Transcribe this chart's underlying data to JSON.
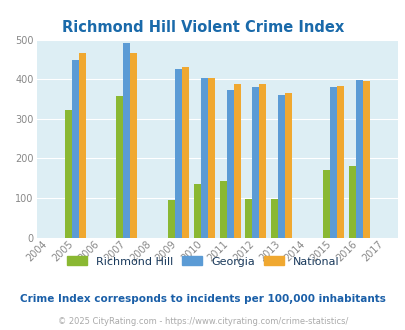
{
  "title": "Richmond Hill Violent Crime Index",
  "years": [
    2005,
    2007,
    2009,
    2010,
    2011,
    2012,
    2013,
    2015,
    2016
  ],
  "richmond_hill": [
    322,
    357,
    95,
    135,
    143,
    97,
    98,
    171,
    181
  ],
  "georgia": [
    448,
    491,
    426,
    402,
    373,
    380,
    361,
    381,
    399
  ],
  "national": [
    467,
    467,
    430,
    404,
    387,
    387,
    365,
    383,
    395
  ],
  "rh_color": "#8ab832",
  "georgia_color": "#5b9bd5",
  "national_color": "#f0a830",
  "bg_color": "#ddeef4",
  "title_color": "#1a6aaa",
  "tick_color": "#888888",
  "grid_color": "#ffffff",
  "note_text": "Crime Index corresponds to incidents per 100,000 inhabitants",
  "footer_text": "© 2025 CityRating.com - https://www.cityrating.com/crime-statistics/",
  "note_color": "#1a5fa8",
  "footer_color": "#aaaaaa",
  "legend_text_color": "#1a3a5c",
  "ylim": [
    0,
    500
  ],
  "yticks": [
    0,
    100,
    200,
    300,
    400,
    500
  ],
  "bar_width": 0.27,
  "xmin": 2003.5,
  "xmax": 2017.5
}
